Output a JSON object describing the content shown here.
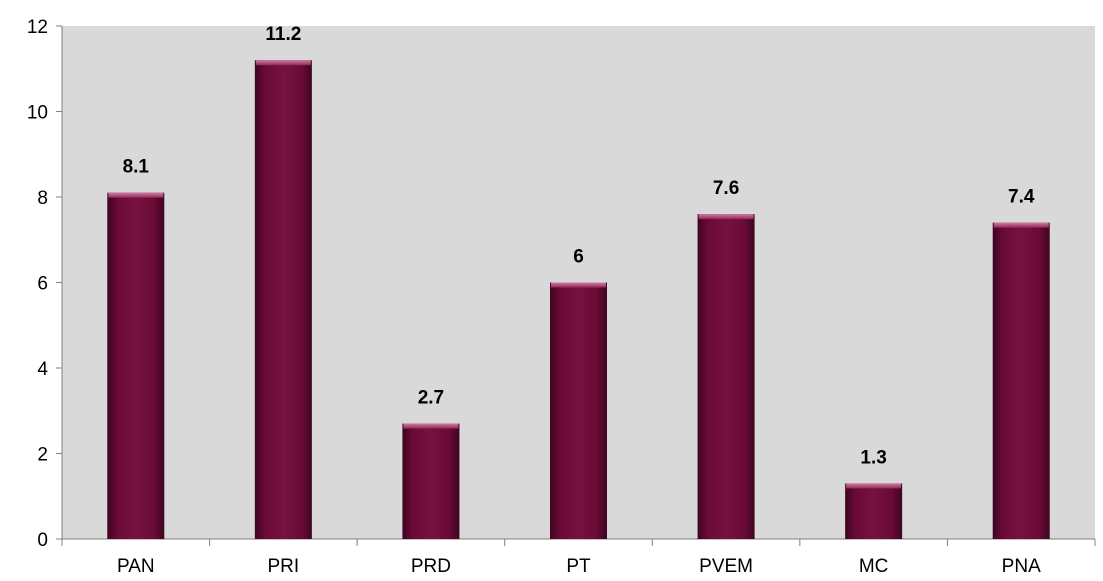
{
  "chart_data": {
    "type": "bar",
    "categories": [
      "PAN",
      "PRI",
      "PRD",
      "PT",
      "PVEM",
      "MC",
      "PNA"
    ],
    "values": [
      8.1,
      11.2,
      2.7,
      6,
      7.6,
      1.3,
      7.4
    ],
    "data_labels": [
      "8.1",
      "11.2",
      "2.7",
      "6",
      "7.6",
      "1.3",
      "7.4"
    ],
    "title": "",
    "xlabel": "",
    "ylabel": "",
    "ylim": [
      0,
      12
    ],
    "yticks": [
      "0",
      "2",
      "4",
      "6",
      "8",
      "10",
      "12"
    ],
    "grid": false,
    "legend": "none",
    "colors": {
      "bar": "#6b0a36",
      "bar_highlight": "#b04a78",
      "plot_background": "#d9d9d9",
      "axis": "#808080"
    }
  }
}
